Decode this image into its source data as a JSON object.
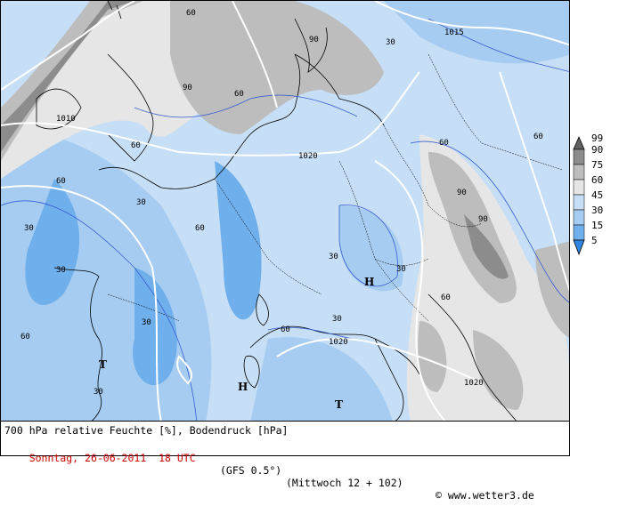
{
  "map": {
    "pressure_labels": [
      "1020",
      "1020",
      "1020",
      "1010",
      "1015"
    ],
    "humidity_labels": [
      "90",
      "90",
      "90",
      "90",
      "60",
      "60",
      "60",
      "60",
      "60",
      "60",
      "60",
      "60",
      "60",
      "60",
      "30",
      "30",
      "30",
      "30",
      "30",
      "30",
      "30",
      "30",
      "30"
    ],
    "centers": [
      {
        "type": "high",
        "label": "H"
      },
      {
        "type": "high",
        "label": "H"
      },
      {
        "type": "trough",
        "label": "T"
      },
      {
        "type": "trough",
        "label": "T"
      }
    ]
  },
  "legend": {
    "items": [
      {
        "label": "99",
        "color": "#606060"
      },
      {
        "label": "90",
        "color": "#8c8c8c"
      },
      {
        "label": "75",
        "color": "#bdbdbd"
      },
      {
        "label": "60",
        "color": "#e6e6e6"
      },
      {
        "label": "45",
        "color": "#c6def6"
      },
      {
        "label": "30",
        "color": "#a6ccf1"
      },
      {
        "label": "15",
        "color": "#6fafeb"
      },
      {
        "label": "5",
        "color": "#2f86e2"
      }
    ]
  },
  "footer": {
    "title": "700 hPa relative Feuchte [%], Bodendruck [hPa]",
    "run_date": "Sonntag, 26-06-2011  18 UTC",
    "model": "(GFS 0.5°)",
    "forecast": "(Mittwoch 12 + 102)",
    "credit": "www.wetter3.de"
  }
}
